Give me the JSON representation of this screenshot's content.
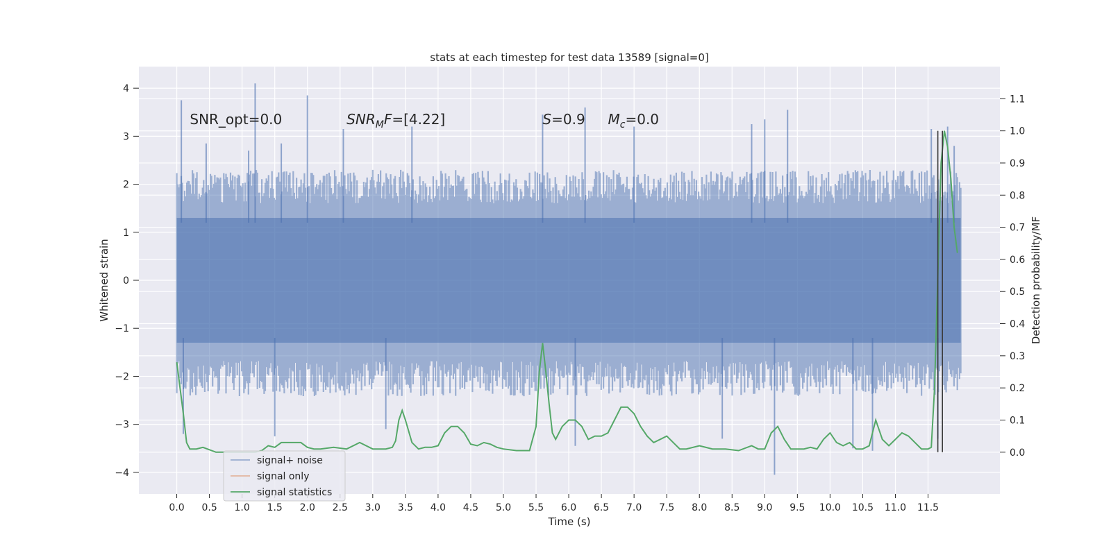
{
  "chart_data": {
    "type": "line",
    "title": "stats at each timestep for test data 13589 [signal=0]",
    "xlabel": "Time (s)",
    "ylabel": "Whitened strain",
    "ylabel_right": "Detection probability/MF",
    "xlim": [
      -0.58,
      12.6
    ],
    "ylim": [
      -4.45,
      4.45
    ],
    "ylim_right": [
      -0.13,
      1.2
    ],
    "xticks": [
      0.0,
      0.5,
      1.0,
      1.5,
      2.0,
      2.5,
      3.0,
      3.5,
      4.0,
      4.5,
      5.0,
      5.5,
      6.0,
      6.5,
      7.0,
      7.5,
      8.0,
      8.5,
      9.0,
      9.5,
      10.0,
      10.5,
      11.0,
      11.5
    ],
    "xtick_labels": [
      "0.0",
      "0.5",
      "1.0",
      "1.5",
      "2.0",
      "2.5",
      "3.0",
      "3.5",
      "4.0",
      "4.5",
      "5.0",
      "5.5",
      "6.0",
      "6.5",
      "7.0",
      "7.5",
      "8.0",
      "8.5",
      "9.0",
      "9.5",
      "10.0",
      "10.5",
      "11.0",
      "11.5"
    ],
    "yticks": [
      -4,
      -3,
      -2,
      -1,
      0,
      1,
      2,
      3,
      4
    ],
    "ytick_labels": [
      "−4",
      "−3",
      "−2",
      "−1",
      "0",
      "1",
      "2",
      "3",
      "4"
    ],
    "yticks_right": [
      0.0,
      0.1,
      0.2,
      0.3,
      0.4,
      0.5,
      0.6,
      0.7,
      0.8,
      0.9,
      1.0,
      1.1
    ],
    "ytick_labels_right": [
      "0.0",
      "0.1",
      "0.2",
      "0.3",
      "0.4",
      "0.5",
      "0.6",
      "0.7",
      "0.8",
      "0.9",
      "1.0",
      "1.1"
    ],
    "grid": true,
    "legend_position": "lower-left",
    "annotations": [
      {
        "parts": [
          {
            "t": "SNR_opt=0.0",
            "i": false
          }
        ],
        "x": 0.2,
        "y": 3.25
      },
      {
        "parts": [
          {
            "t": "SNR",
            "i": true
          },
          {
            "t": "M",
            "i": true,
            "sub": true
          },
          {
            "t": "F",
            "i": true
          },
          {
            "t": "=[4.22]",
            "i": false
          }
        ],
        "x": 2.6,
        "y": 3.25
      },
      {
        "parts": [
          {
            "t": "S",
            "i": true
          },
          {
            "t": "=0.9",
            "i": false
          }
        ],
        "x": 5.6,
        "y": 3.25
      },
      {
        "parts": [
          {
            "t": "M",
            "i": true
          },
          {
            "t": "c",
            "i": true,
            "sub": true
          },
          {
            "t": "=0.0",
            "i": false
          }
        ],
        "x": 6.6,
        "y": 3.25
      }
    ],
    "series": [
      {
        "name": "signal+ noise",
        "color": "#4c72b0",
        "alpha": 0.5,
        "x_range": [
          0.0,
          12.0
        ],
        "envelope_upper_typical": 2.0,
        "envelope_lower_typical": -2.1,
        "spikes": [
          {
            "x": 0.07,
            "y": 3.75
          },
          {
            "x": 0.45,
            "y": 2.85
          },
          {
            "x": 1.1,
            "y": 2.7
          },
          {
            "x": 1.2,
            "y": 4.1
          },
          {
            "x": 1.6,
            "y": 2.85
          },
          {
            "x": 2.0,
            "y": 3.85
          },
          {
            "x": 2.55,
            "y": 3.15
          },
          {
            "x": 3.6,
            "y": 3.2
          },
          {
            "x": 5.6,
            "y": 3.45
          },
          {
            "x": 6.25,
            "y": 3.6
          },
          {
            "x": 7.0,
            "y": 3.2
          },
          {
            "x": 8.8,
            "y": 3.25
          },
          {
            "x": 9.0,
            "y": 3.35
          },
          {
            "x": 9.35,
            "y": 3.55
          },
          {
            "x": 11.55,
            "y": 3.15
          },
          {
            "x": 11.8,
            "y": 3.2
          },
          {
            "x": 11.9,
            "y": 2.8
          },
          {
            "x": 0.1,
            "y": -3.2
          },
          {
            "x": 1.5,
            "y": -3.25
          },
          {
            "x": 3.2,
            "y": -3.1
          },
          {
            "x": 6.1,
            "y": -3.45
          },
          {
            "x": 8.35,
            "y": -3.3
          },
          {
            "x": 9.15,
            "y": -4.05
          },
          {
            "x": 10.35,
            "y": -3.5
          },
          {
            "x": 10.65,
            "y": -3.55
          },
          {
            "x": 11.65,
            "y": -3.3
          }
        ]
      },
      {
        "name": "signal only",
        "color": "#dd8452",
        "x": [],
        "y": []
      },
      {
        "name": "signal statistics",
        "color": "#55a868",
        "axis": "right",
        "x": [
          0.0,
          0.05,
          0.1,
          0.15,
          0.2,
          0.3,
          0.4,
          0.6,
          0.8,
          1.0,
          1.2,
          1.3,
          1.4,
          1.5,
          1.6,
          1.7,
          1.9,
          2.0,
          2.1,
          2.2,
          2.4,
          2.6,
          2.8,
          3.0,
          3.2,
          3.3,
          3.35,
          3.4,
          3.45,
          3.5,
          3.6,
          3.7,
          3.8,
          3.9,
          4.0,
          4.1,
          4.2,
          4.3,
          4.4,
          4.5,
          4.6,
          4.7,
          4.8,
          4.9,
          5.0,
          5.2,
          5.4,
          5.5,
          5.55,
          5.6,
          5.65,
          5.7,
          5.75,
          5.8,
          5.9,
          6.0,
          6.1,
          6.2,
          6.3,
          6.4,
          6.5,
          6.6,
          6.7,
          6.8,
          6.9,
          7.0,
          7.1,
          7.2,
          7.3,
          7.4,
          7.5,
          7.6,
          7.7,
          7.8,
          8.0,
          8.2,
          8.4,
          8.6,
          8.8,
          8.9,
          9.0,
          9.1,
          9.2,
          9.3,
          9.4,
          9.6,
          9.7,
          9.8,
          9.9,
          10.0,
          10.1,
          10.2,
          10.3,
          10.4,
          10.5,
          10.6,
          10.7,
          10.8,
          10.9,
          11.0,
          11.1,
          11.2,
          11.3,
          11.4,
          11.5,
          11.55,
          11.6,
          11.65,
          11.7,
          11.75,
          11.8,
          11.85,
          11.9,
          11.95
        ],
        "y": [
          0.28,
          0.2,
          0.12,
          0.03,
          0.01,
          0.01,
          0.015,
          0.0,
          0.0,
          0.0,
          0.0,
          0.005,
          0.02,
          0.015,
          0.03,
          0.03,
          0.03,
          0.015,
          0.01,
          0.01,
          0.015,
          0.01,
          0.03,
          0.01,
          0.01,
          0.015,
          0.035,
          0.1,
          0.13,
          0.1,
          0.03,
          0.01,
          0.015,
          0.015,
          0.02,
          0.06,
          0.08,
          0.08,
          0.06,
          0.025,
          0.02,
          0.03,
          0.025,
          0.015,
          0.01,
          0.005,
          0.005,
          0.08,
          0.25,
          0.34,
          0.25,
          0.15,
          0.06,
          0.04,
          0.08,
          0.1,
          0.1,
          0.08,
          0.04,
          0.05,
          0.05,
          0.06,
          0.1,
          0.14,
          0.14,
          0.12,
          0.08,
          0.05,
          0.03,
          0.04,
          0.05,
          0.03,
          0.01,
          0.01,
          0.02,
          0.01,
          0.01,
          0.005,
          0.02,
          0.01,
          0.01,
          0.06,
          0.08,
          0.04,
          0.01,
          0.01,
          0.015,
          0.01,
          0.04,
          0.06,
          0.03,
          0.02,
          0.03,
          0.01,
          0.01,
          0.02,
          0.1,
          0.04,
          0.02,
          0.04,
          0.06,
          0.05,
          0.03,
          0.01,
          0.01,
          0.015,
          0.2,
          0.55,
          0.9,
          1.0,
          0.95,
          0.85,
          0.7,
          0.62
        ]
      }
    ],
    "vlines": [
      {
        "x": 11.65,
        "y0": 0.0,
        "y1": 1.0,
        "color": "#3c3c3c"
      },
      {
        "x": 11.72,
        "y0": 0.0,
        "y1": 1.0,
        "color": "#3c3c3c"
      }
    ]
  }
}
